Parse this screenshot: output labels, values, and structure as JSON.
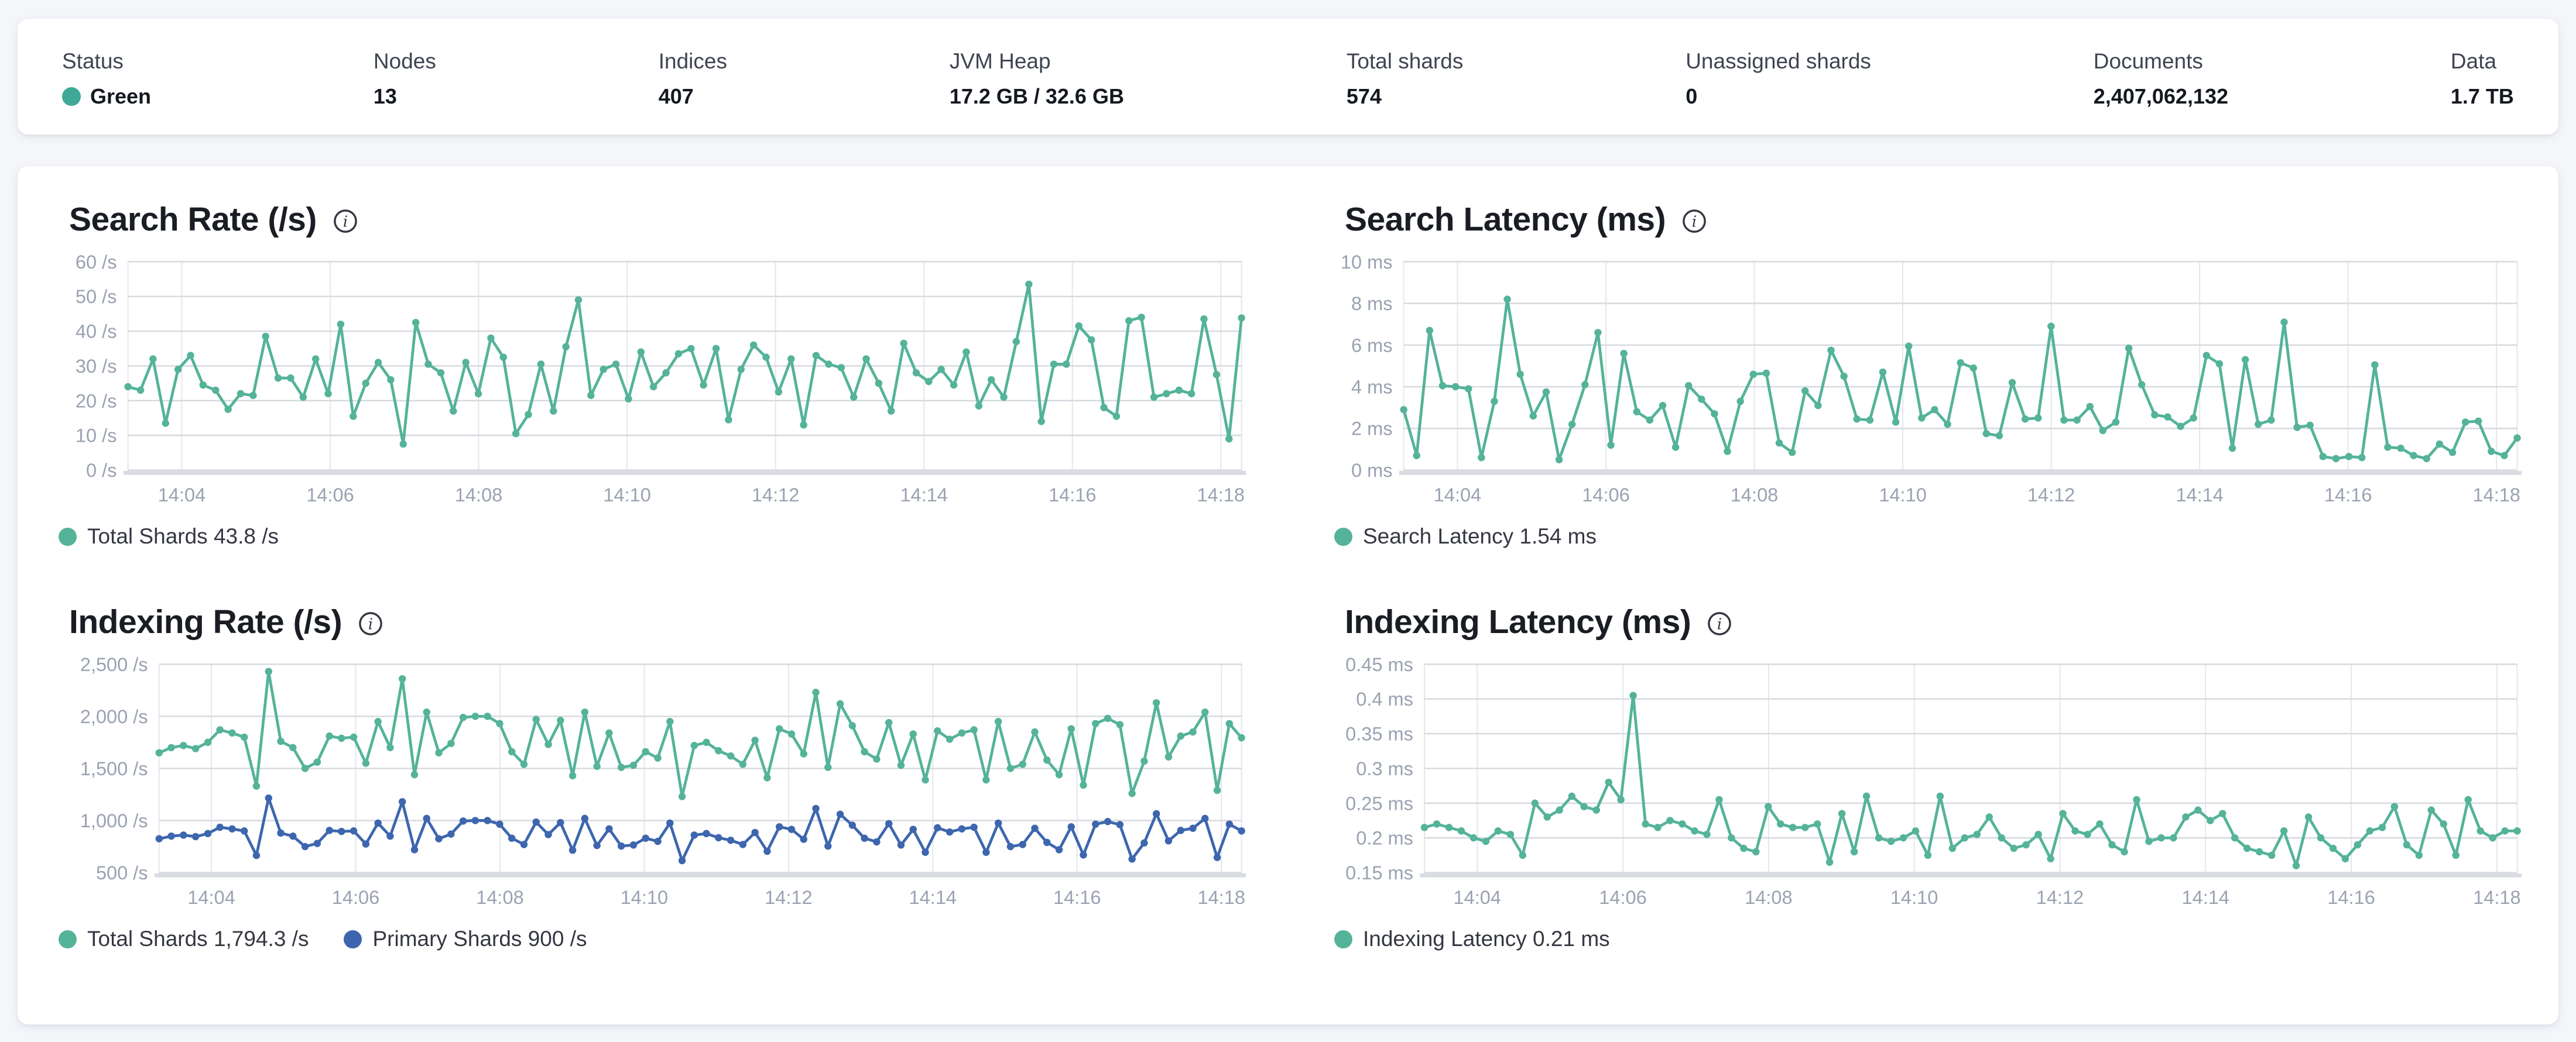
{
  "colors": {
    "status_dot": "#3DA996",
    "teal_series": "#54B399",
    "blue_series": "#3D66AE",
    "grid_h": "#D5D8DE",
    "grid_v": "#E4E6EA",
    "axis_line": "#D8DBE1",
    "tick_text": "#9AA2B1",
    "icon": "#343741"
  },
  "stats": {
    "items": [
      {
        "label": "Status",
        "value": "Green"
      },
      {
        "label": "Nodes",
        "value": "13"
      },
      {
        "label": "Indices",
        "value": "407"
      },
      {
        "label": "JVM Heap",
        "value": "17.2 GB / 32.6 GB"
      },
      {
        "label": "Total shards",
        "value": "574"
      },
      {
        "label": "Unassigned shards",
        "value": "0"
      },
      {
        "label": "Documents",
        "value": "2,407,062,132"
      },
      {
        "label": "Data",
        "value": "1.7 TB"
      }
    ]
  },
  "chart_data": [
    {
      "type": "line",
      "title": "Search Rate (/s)",
      "ylabel": "/s",
      "ylim": [
        0,
        60
      ],
      "y_ticks": [
        0,
        10,
        20,
        30,
        40,
        50,
        60
      ],
      "y_tick_labels": [
        "0 /s",
        "10 /s",
        "20 /s",
        "30 /s",
        "40 /s",
        "50 /s",
        "60 /s"
      ],
      "x_tick_labels": [
        "14:04",
        "14:06",
        "14:08",
        "14:10",
        "14:12",
        "14:14",
        "14:16",
        "14:18"
      ],
      "grid": true,
      "legend_position": "bottom",
      "series": [
        {
          "name": "Total Shards",
          "color": "#54B399",
          "values": [
            24,
            23,
            32,
            13.5,
            29,
            33,
            24.5,
            23,
            17.5,
            22,
            21.5,
            38.5,
            26.5,
            26.5,
            21,
            32,
            22,
            42,
            15.5,
            25,
            31,
            26,
            7.5,
            42.5,
            30.5,
            28,
            17,
            31,
            22,
            38,
            32.5,
            10.5,
            16,
            30.5,
            17,
            35.5,
            49,
            21.5,
            29,
            30.5,
            20.5,
            34,
            24,
            28,
            33.5,
            35,
            24.5,
            35,
            14.5,
            29,
            36,
            32.5,
            22.5,
            32,
            13,
            33,
            30.5,
            29.5,
            21,
            32,
            25,
            17,
            36.5,
            28,
            25.5,
            29,
            24.5,
            34,
            18.5,
            26,
            21,
            37,
            53.5,
            14,
            30.5,
            30.5,
            41.5,
            37.5,
            18,
            15.5,
            43,
            44,
            21,
            22,
            23,
            22,
            43.5,
            27.5,
            9,
            43.8
          ]
        }
      ],
      "legend": [
        {
          "label": "Total Shards 43.8 /s",
          "color": "#54B399"
        }
      ]
    },
    {
      "type": "line",
      "title": "Search Latency (ms)",
      "ylabel": "ms",
      "ylim": [
        0,
        10
      ],
      "y_ticks": [
        0,
        2,
        4,
        6,
        8,
        10
      ],
      "y_tick_labels": [
        "0 ms",
        "2 ms",
        "4 ms",
        "6 ms",
        "8 ms",
        "10 ms"
      ],
      "x_tick_labels": [
        "14:04",
        "14:06",
        "14:08",
        "14:10",
        "14:12",
        "14:14",
        "14:16",
        "14:18"
      ],
      "grid": true,
      "legend_position": "bottom",
      "series": [
        {
          "name": "Search Latency",
          "color": "#54B399",
          "values": [
            2.9,
            0.7,
            6.7,
            4.05,
            4,
            3.9,
            0.6,
            3.3,
            8.2,
            4.6,
            2.6,
            3.75,
            0.5,
            2.2,
            4.1,
            6.6,
            1.2,
            5.6,
            2.8,
            2.4,
            3.1,
            1.1,
            4.05,
            3.4,
            2.7,
            0.9,
            3.3,
            4.6,
            4.65,
            1.3,
            0.85,
            3.8,
            3.1,
            5.75,
            4.5,
            2.45,
            2.4,
            4.7,
            2.3,
            5.95,
            2.5,
            2.9,
            2.2,
            5.15,
            4.9,
            1.75,
            1.65,
            4.2,
            2.45,
            2.5,
            6.9,
            2.4,
            2.4,
            3.05,
            1.9,
            2.3,
            5.85,
            4.1,
            2.65,
            2.55,
            2.1,
            2.5,
            5.5,
            5.1,
            1.05,
            5.3,
            2.2,
            2.4,
            7.1,
            2.05,
            2.15,
            0.65,
            0.55,
            0.65,
            0.6,
            5.05,
            1.1,
            1.05,
            0.7,
            0.55,
            1.25,
            0.85,
            2.3,
            2.35,
            0.9,
            0.7,
            1.54
          ]
        }
      ],
      "legend": [
        {
          "label": "Search Latency 1.54 ms",
          "color": "#54B399"
        }
      ]
    },
    {
      "type": "line",
      "title": "Indexing Rate (/s)",
      "ylabel": "/s",
      "ylim": [
        500,
        2500
      ],
      "y_ticks": [
        500,
        1000,
        1500,
        2000,
        2500
      ],
      "y_tick_labels": [
        "500 /s",
        "1,000 /s",
        "1,500 /s",
        "2,000 /s",
        "2,500 /s"
      ],
      "x_tick_labels": [
        "14:04",
        "14:06",
        "14:08",
        "14:10",
        "14:12",
        "14:14",
        "14:16",
        "14:18"
      ],
      "grid": true,
      "legend_position": "bottom",
      "series": [
        {
          "name": "Total Shards",
          "color": "#54B399",
          "values": [
            1650,
            1700,
            1720,
            1690,
            1750,
            1870,
            1840,
            1800,
            1330,
            2430,
            1760,
            1700,
            1500,
            1560,
            1810,
            1790,
            1800,
            1550,
            1950,
            1700,
            2360,
            1440,
            2040,
            1650,
            1740,
            1990,
            2000,
            2000,
            1930,
            1660,
            1540,
            1970,
            1730,
            1960,
            1430,
            2040,
            1520,
            1840,
            1510,
            1530,
            1660,
            1600,
            1950,
            1230,
            1720,
            1750,
            1670,
            1620,
            1540,
            1770,
            1410,
            1880,
            1830,
            1640,
            2230,
            1510,
            2120,
            1910,
            1660,
            1590,
            1940,
            1530,
            1830,
            1390,
            1860,
            1780,
            1840,
            1870,
            1390,
            1950,
            1500,
            1540,
            1850,
            1580,
            1440,
            1880,
            1340,
            1930,
            1980,
            1920,
            1260,
            1570,
            2130,
            1610,
            1810,
            1850,
            2040,
            1290,
            1930,
            1794.3
          ]
        },
        {
          "name": "Primary Shards",
          "color": "#3D66AE",
          "values": [
            825,
            850,
            860,
            845,
            875,
            935,
            920,
            900,
            665,
            1215,
            880,
            850,
            750,
            780,
            905,
            895,
            900,
            775,
            975,
            850,
            1180,
            720,
            1020,
            825,
            870,
            995,
            1000,
            1000,
            965,
            830,
            770,
            985,
            865,
            980,
            715,
            1020,
            760,
            920,
            755,
            765,
            830,
            800,
            975,
            615,
            860,
            875,
            835,
            810,
            770,
            885,
            705,
            940,
            915,
            820,
            1115,
            755,
            1060,
            955,
            830,
            795,
            970,
            765,
            915,
            695,
            930,
            890,
            920,
            935,
            695,
            975,
            750,
            770,
            925,
            790,
            720,
            940,
            670,
            965,
            990,
            960,
            630,
            785,
            1065,
            805,
            905,
            925,
            1020,
            645,
            965,
            900
          ]
        }
      ],
      "legend": [
        {
          "label": "Total Shards 1,794.3 /s",
          "color": "#54B399"
        },
        {
          "label": "Primary Shards 900 /s",
          "color": "#3D66AE"
        }
      ]
    },
    {
      "type": "line",
      "title": "Indexing Latency (ms)",
      "ylabel": "ms",
      "ylim": [
        0.15,
        0.45
      ],
      "y_ticks": [
        0.15,
        0.2,
        0.25,
        0.3,
        0.35,
        0.4,
        0.45
      ],
      "y_tick_labels": [
        "0.15 ms",
        "0.2 ms",
        "0.25 ms",
        "0.3 ms",
        "0.35 ms",
        "0.4 ms",
        "0.45 ms"
      ],
      "x_tick_labels": [
        "14:04",
        "14:06",
        "14:08",
        "14:10",
        "14:12",
        "14:14",
        "14:16",
        "14:18"
      ],
      "grid": true,
      "legend_position": "bottom",
      "series": [
        {
          "name": "Indexing Latency",
          "color": "#54B399",
          "values": [
            0.215,
            0.22,
            0.215,
            0.21,
            0.2,
            0.195,
            0.21,
            0.205,
            0.175,
            0.25,
            0.23,
            0.24,
            0.26,
            0.245,
            0.24,
            0.28,
            0.255,
            0.405,
            0.22,
            0.215,
            0.225,
            0.22,
            0.21,
            0.205,
            0.255,
            0.2,
            0.185,
            0.18,
            0.245,
            0.22,
            0.215,
            0.215,
            0.22,
            0.165,
            0.235,
            0.18,
            0.26,
            0.2,
            0.195,
            0.2,
            0.21,
            0.175,
            0.26,
            0.185,
            0.2,
            0.205,
            0.23,
            0.2,
            0.185,
            0.19,
            0.205,
            0.17,
            0.235,
            0.21,
            0.205,
            0.22,
            0.19,
            0.18,
            0.255,
            0.195,
            0.2,
            0.2,
            0.23,
            0.24,
            0.225,
            0.235,
            0.2,
            0.185,
            0.18,
            0.175,
            0.21,
            0.16,
            0.23,
            0.2,
            0.185,
            0.17,
            0.19,
            0.21,
            0.215,
            0.245,
            0.19,
            0.175,
            0.24,
            0.22,
            0.175,
            0.255,
            0.21,
            0.2,
            0.21,
            0.21
          ]
        }
      ],
      "legend": [
        {
          "label": "Indexing Latency 0.21 ms",
          "color": "#54B399"
        }
      ]
    }
  ]
}
